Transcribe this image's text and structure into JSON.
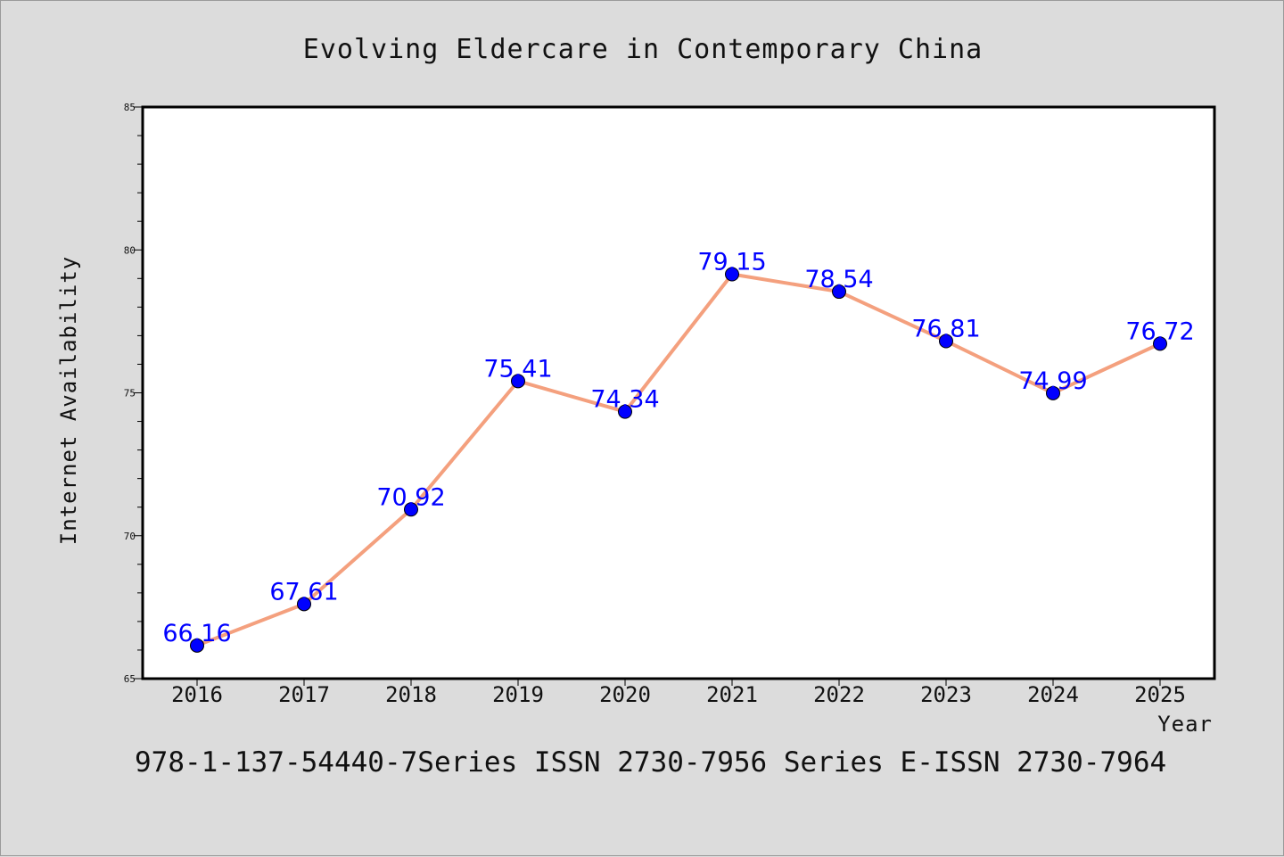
{
  "colors": {
    "background": "#dcdcdc",
    "plot_background": "#ffffff",
    "line": "#f4a07e",
    "marker": "#0000ff",
    "data_label": "#0000ff"
  },
  "footer": "978-1-137-54440-7Series ISSN 2730-7956 Series E-ISSN 2730-7964",
  "chart_data": {
    "type": "line",
    "title": "Evolving Eldercare in Contemporary China",
    "xlabel": "Year",
    "ylabel": "Internet Availability",
    "categories": [
      "2016",
      "2017",
      "2018",
      "2019",
      "2020",
      "2021",
      "2022",
      "2023",
      "2024",
      "2025"
    ],
    "series": [
      {
        "values": [
          66.16,
          67.61,
          70.92,
          75.41,
          74.34,
          79.15,
          78.54,
          76.81,
          74.99,
          76.72
        ],
        "data_labels": [
          "66.16",
          "67.61",
          "70.92",
          "75.41",
          "74.34",
          "79.15",
          "78.54",
          "76.81",
          "74.99",
          "76.72"
        ]
      }
    ],
    "ylim": [
      65,
      85
    ],
    "yticks": [
      "65",
      "70",
      "75",
      "80",
      "85"
    ],
    "grid": false,
    "legend": "none"
  }
}
